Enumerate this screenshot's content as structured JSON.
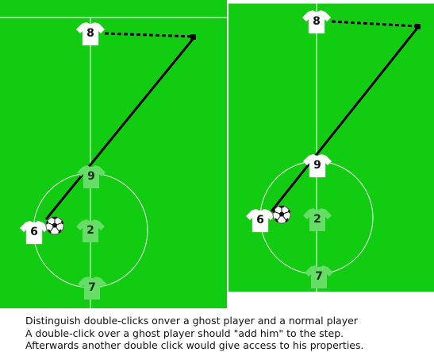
{
  "colors": {
    "pitch": "#11cc11",
    "line": "#ffffff",
    "shirt_normal": "#ffffff",
    "shirt_ghost": "#66dd66",
    "pass_line": "#000000"
  },
  "left_field": {
    "players": [
      {
        "number": "8",
        "ghost": false
      },
      {
        "number": "9",
        "ghost": true
      },
      {
        "number": "6",
        "ghost": false
      },
      {
        "number": "2",
        "ghost": true
      },
      {
        "number": "7",
        "ghost": true
      }
    ]
  },
  "right_field": {
    "players": [
      {
        "number": "8",
        "ghost": false
      },
      {
        "number": "9",
        "ghost": false
      },
      {
        "number": "6",
        "ghost": false
      },
      {
        "number": "2",
        "ghost": true
      },
      {
        "number": "7",
        "ghost": true
      }
    ]
  },
  "caption": {
    "line1": "Distinguish double-clicks onver a ghost player and a normal player",
    "line2": "A double-click over a ghost player should \"add him\" to the step.",
    "line3": "Afterwards another double click would give access to his properties."
  },
  "icons": {
    "ball": "soccer-ball-icon",
    "shirt": "jersey-icon",
    "arrow_end": "arrow-head-icon"
  }
}
